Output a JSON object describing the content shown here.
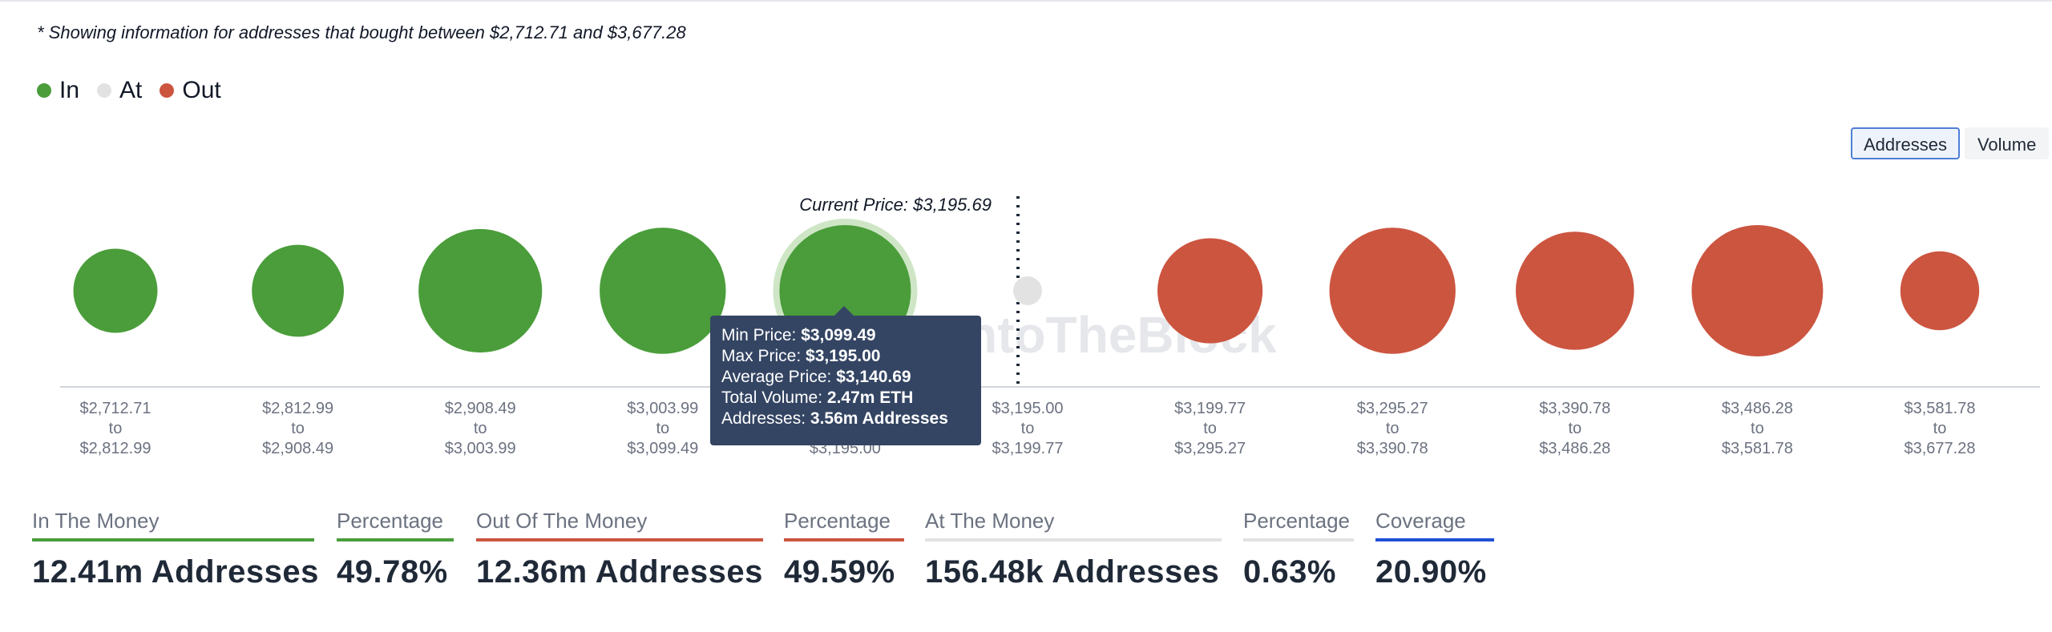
{
  "note": "* Showing information for addresses that bought between $2,712.71 and $3,677.28",
  "legend": [
    {
      "label": "In",
      "color": "#4a9d3a"
    },
    {
      "label": "At",
      "color": "#e2e2e2"
    },
    {
      "label": "Out",
      "color": "#cc5540"
    }
  ],
  "toggle": {
    "addresses": "Addresses",
    "volume": "Volume"
  },
  "watermark": "IntoTheBlock",
  "chart_data": {
    "type": "scatter",
    "current_price_label": "Current Price: $3,195.69",
    "current_price": 3195.69,
    "ranges": [
      {
        "low": "$2,712.71",
        "to": "to",
        "high": "$2,812.99",
        "status": "in",
        "rel_size": 0.64
      },
      {
        "low": "$2,812.99",
        "to": "to",
        "high": "$2,908.49",
        "status": "in",
        "rel_size": 0.7
      },
      {
        "low": "$2,908.49",
        "to": "to",
        "high": "$3,003.99",
        "status": "in",
        "rel_size": 0.94
      },
      {
        "low": "$3,003.99",
        "to": "to",
        "high": "$3,099.49",
        "status": "in",
        "rel_size": 0.96
      },
      {
        "low": "$3,099.49",
        "to": "to",
        "high": "$3,195.00",
        "status": "in",
        "rel_size": 1.0,
        "highlighted": true
      },
      {
        "low": "$3,195.00",
        "to": "to",
        "high": "$3,199.77",
        "status": "at",
        "rel_size": 0.22
      },
      {
        "low": "$3,199.77",
        "to": "to",
        "high": "$3,295.27",
        "status": "out",
        "rel_size": 0.8
      },
      {
        "low": "$3,295.27",
        "to": "to",
        "high": "$3,390.78",
        "status": "out",
        "rel_size": 0.96
      },
      {
        "low": "$3,390.78",
        "to": "to",
        "high": "$3,486.28",
        "status": "out",
        "rel_size": 0.9
      },
      {
        "low": "$3,486.28",
        "to": "to",
        "high": "$3,581.78",
        "status": "out",
        "rel_size": 1.0
      },
      {
        "low": "$3,581.78",
        "to": "to",
        "high": "$3,677.28",
        "status": "out",
        "rel_size": 0.6
      }
    ],
    "colors": {
      "in": "#4a9d3a",
      "at": "#e2e2e2",
      "out": "#cc5540",
      "highlight_ring": "#cfe6c6"
    }
  },
  "tooltip": {
    "min_label": "Min Price: ",
    "min_value": "$3,099.49",
    "max_label": "Max Price: ",
    "max_value": "$3,195.00",
    "avg_label": "Average Price: ",
    "avg_value": "$3,140.69",
    "vol_label": "Total Volume: ",
    "vol_value": "2.47m ETH",
    "addr_label": "Addresses: ",
    "addr_value": "3.56m Addresses"
  },
  "metrics": [
    {
      "label": "In The Money",
      "value": "12.41m Addresses",
      "color": "#4a9d3a"
    },
    {
      "label": "Percentage",
      "value": "49.78%",
      "color": "#4a9d3a"
    },
    {
      "label": "Out Of The Money",
      "value": "12.36m Addresses",
      "color": "#cc5540"
    },
    {
      "label": "Percentage",
      "value": "49.59%",
      "color": "#cc5540"
    },
    {
      "label": "At The Money",
      "value": "156.48k Addresses",
      "color": "#e2e2e2"
    },
    {
      "label": "Percentage",
      "value": "0.63%",
      "color": "#e2e2e2"
    },
    {
      "label": "Coverage",
      "value": "20.90%",
      "color": "#1f4fd6"
    }
  ]
}
